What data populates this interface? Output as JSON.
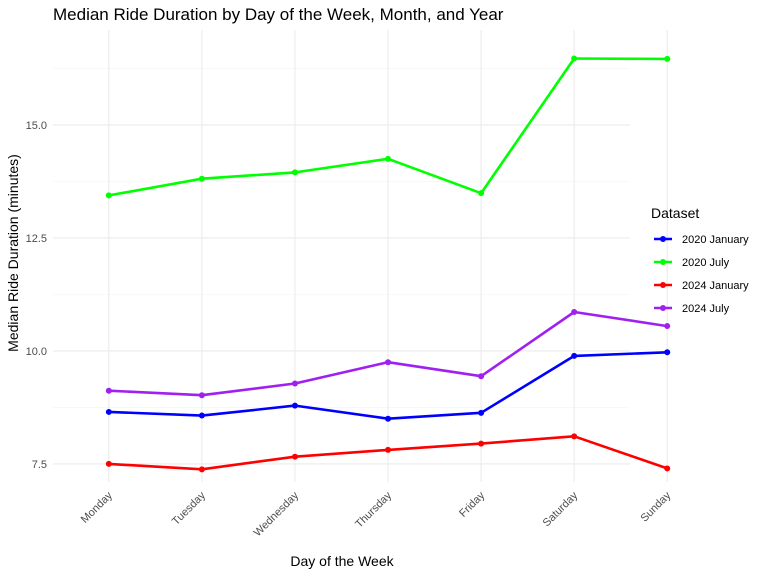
{
  "chart_data": {
    "type": "line",
    "title": "Median Ride Duration by Day of the Week, Month, and Year",
    "xlabel": "Day of the Week",
    "ylabel": "Median Ride Duration (minutes)",
    "categories": [
      "Monday",
      "Tuesday",
      "Wednesday",
      "Thursday",
      "Friday",
      "Saturday",
      "Sunday"
    ],
    "ylim": [
      7.1,
      17.1
    ],
    "yticks": [
      7.5,
      10.0,
      12.5,
      15.0
    ],
    "ytick_labels": [
      "7.5",
      "10.0",
      "12.5",
      "15.0"
    ],
    "grid": true,
    "legend": {
      "title": "Dataset",
      "position": "right"
    },
    "series": [
      {
        "name": "2020 January",
        "color": "#0000ff",
        "values": [
          8.65,
          8.57,
          8.79,
          8.5,
          8.63,
          9.89,
          9.97
        ]
      },
      {
        "name": "2020 July",
        "color": "#00ff00",
        "values": [
          13.44,
          13.81,
          13.95,
          14.25,
          13.49,
          16.47,
          16.46
        ]
      },
      {
        "name": "2024 January",
        "color": "#ff0000",
        "values": [
          7.5,
          7.38,
          7.66,
          7.81,
          7.95,
          8.11,
          7.4
        ]
      },
      {
        "name": "2024 July",
        "color": "#a020f0",
        "values": [
          9.12,
          9.02,
          9.28,
          9.75,
          9.44,
          10.86,
          10.55
        ]
      }
    ]
  }
}
